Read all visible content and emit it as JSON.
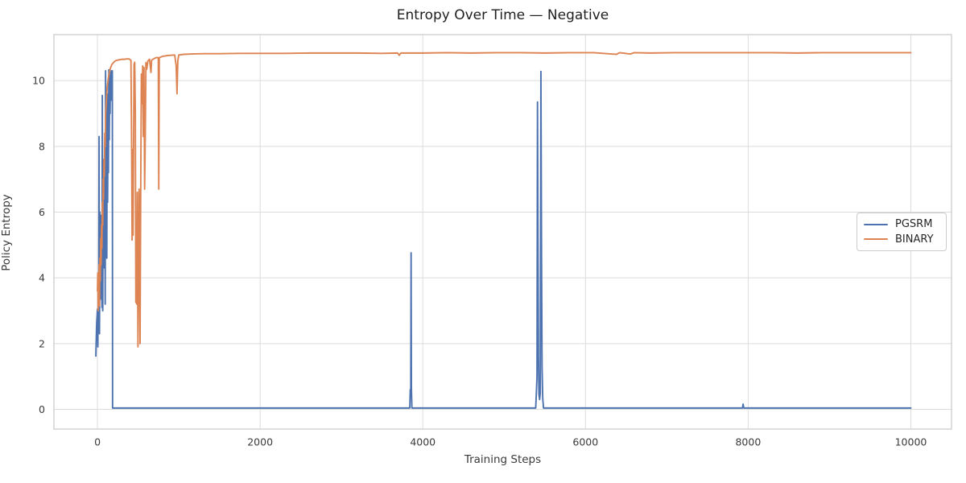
{
  "figure": {
    "title": "Entropy Over Time — Negative",
    "xlabel": "Training Steps",
    "ylabel": "Policy Entropy"
  },
  "legend": {
    "items": [
      {
        "label": "PGSRM",
        "color": "#4C72B0"
      },
      {
        "label": "BINARY",
        "color": "#DD8452"
      }
    ]
  },
  "colors": {
    "grid": "#DCDCDC",
    "spine": "#C9C9C9",
    "blue": "#4C72B0",
    "orange": "#DD8452"
  },
  "chart_data": {
    "type": "line",
    "title": "Entropy Over Time — Negative",
    "xlabel": "Training Steps",
    "ylabel": "Policy Entropy",
    "xlim": [
      -535,
      10500
    ],
    "ylim": [
      -0.6,
      11.4
    ],
    "xticks": [
      0,
      2000,
      4000,
      6000,
      8000,
      10000
    ],
    "yticks": [
      0,
      2,
      4,
      6,
      8,
      10
    ],
    "grid": true,
    "legend_position": "center right",
    "series": [
      {
        "name": "PGSRM",
        "color": "#4C72B0",
        "points": [
          [
            -20,
            1.62
          ],
          [
            -10,
            2.6
          ],
          [
            0,
            3.05
          ],
          [
            5,
            1.9
          ],
          [
            10,
            4.1
          ],
          [
            15,
            2.6
          ],
          [
            20,
            8.3
          ],
          [
            25,
            2.3
          ],
          [
            30,
            6.0
          ],
          [
            35,
            3.35
          ],
          [
            40,
            5.9
          ],
          [
            45,
            4.1
          ],
          [
            50,
            5.2
          ],
          [
            55,
            3.1
          ],
          [
            60,
            9.55
          ],
          [
            65,
            3.0
          ],
          [
            70,
            7.6
          ],
          [
            75,
            4.8
          ],
          [
            80,
            6.9
          ],
          [
            85,
            4.3
          ],
          [
            90,
            8.1
          ],
          [
            95,
            3.2
          ],
          [
            100,
            10.3
          ],
          [
            105,
            5.1
          ],
          [
            110,
            7.9
          ],
          [
            115,
            4.6
          ],
          [
            120,
            9.6
          ],
          [
            125,
            6.3
          ],
          [
            130,
            8.6
          ],
          [
            135,
            7.2
          ],
          [
            140,
            10.33
          ],
          [
            145,
            8.2
          ],
          [
            150,
            9.8
          ],
          [
            155,
            9.0
          ],
          [
            160,
            10.25
          ],
          [
            165,
            9.4
          ],
          [
            170,
            10.3
          ],
          [
            178,
            10.2
          ],
          [
            183,
            10.3
          ],
          [
            186,
            0.04
          ],
          [
            3840,
            0.04
          ],
          [
            3846,
            0.6
          ],
          [
            3852,
            0.55
          ],
          [
            3856,
            4.76
          ],
          [
            3860,
            0.62
          ],
          [
            3866,
            0.04
          ],
          [
            5388,
            0.04
          ],
          [
            5396,
            0.5
          ],
          [
            5404,
            1.0
          ],
          [
            5410,
            9.35
          ],
          [
            5416,
            5.2
          ],
          [
            5422,
            1.6
          ],
          [
            5428,
            0.45
          ],
          [
            5436,
            0.3
          ],
          [
            5444,
            0.5
          ],
          [
            5452,
            10.28
          ],
          [
            5460,
            4.4
          ],
          [
            5466,
            1.3
          ],
          [
            5474,
            0.35
          ],
          [
            5484,
            0.04
          ],
          [
            7930,
            0.04
          ],
          [
            7938,
            0.16
          ],
          [
            7946,
            0.04
          ],
          [
            10000,
            0.04
          ]
        ]
      },
      {
        "name": "BINARY",
        "color": "#DD8452",
        "points": [
          [
            0,
            3.6
          ],
          [
            4,
            4.15
          ],
          [
            8,
            3.0
          ],
          [
            12,
            3.95
          ],
          [
            16,
            3.3
          ],
          [
            20,
            4.4
          ],
          [
            25,
            3.15
          ],
          [
            30,
            4.6
          ],
          [
            35,
            3.9
          ],
          [
            40,
            5.2
          ],
          [
            45,
            4.4
          ],
          [
            50,
            5.6
          ],
          [
            55,
            4.9
          ],
          [
            60,
            6.3
          ],
          [
            65,
            5.6
          ],
          [
            70,
            7.0
          ],
          [
            75,
            6.4
          ],
          [
            80,
            7.6
          ],
          [
            85,
            7.1
          ],
          [
            90,
            8.4
          ],
          [
            95,
            8.0
          ],
          [
            100,
            9.0
          ],
          [
            110,
            9.4
          ],
          [
            120,
            9.8
          ],
          [
            135,
            10.1
          ],
          [
            150,
            10.3
          ],
          [
            165,
            10.42
          ],
          [
            180,
            10.5
          ],
          [
            200,
            10.56
          ],
          [
            220,
            10.6
          ],
          [
            240,
            10.62
          ],
          [
            260,
            10.63
          ],
          [
            280,
            10.64
          ],
          [
            300,
            10.65
          ],
          [
            330,
            10.65
          ],
          [
            360,
            10.66
          ],
          [
            390,
            10.66
          ],
          [
            412,
            10.62
          ],
          [
            420,
            8.0
          ],
          [
            426,
            5.15
          ],
          [
            432,
            7.9
          ],
          [
            438,
            5.3
          ],
          [
            444,
            8.0
          ],
          [
            450,
            10.5
          ],
          [
            458,
            10.56
          ],
          [
            466,
            9.0
          ],
          [
            472,
            3.25
          ],
          [
            478,
            4.9
          ],
          [
            484,
            3.2
          ],
          [
            490,
            6.6
          ],
          [
            498,
            1.9
          ],
          [
            506,
            4.4
          ],
          [
            512,
            6.7
          ],
          [
            518,
            4.5
          ],
          [
            524,
            2.0
          ],
          [
            532,
            6.7
          ],
          [
            540,
            10.2
          ],
          [
            548,
            9.3
          ],
          [
            556,
            10.45
          ],
          [
            564,
            8.3
          ],
          [
            572,
            10.4
          ],
          [
            580,
            6.7
          ],
          [
            588,
            8.3
          ],
          [
            596,
            10.55
          ],
          [
            606,
            10.35
          ],
          [
            620,
            10.6
          ],
          [
            640,
            10.65
          ],
          [
            658,
            10.25
          ],
          [
            666,
            10.62
          ],
          [
            690,
            10.66
          ],
          [
            720,
            10.7
          ],
          [
            748,
            10.7
          ],
          [
            754,
            6.7
          ],
          [
            760,
            10.7
          ],
          [
            800,
            10.74
          ],
          [
            850,
            10.76
          ],
          [
            900,
            10.77
          ],
          [
            950,
            10.78
          ],
          [
            968,
            10.45
          ],
          [
            978,
            9.6
          ],
          [
            988,
            10.6
          ],
          [
            1000,
            10.78
          ],
          [
            1060,
            10.8
          ],
          [
            1150,
            10.81
          ],
          [
            1300,
            10.82
          ],
          [
            1500,
            10.82
          ],
          [
            1750,
            10.83
          ],
          [
            2000,
            10.83
          ],
          [
            2300,
            10.83
          ],
          [
            2600,
            10.84
          ],
          [
            2900,
            10.84
          ],
          [
            3200,
            10.84
          ],
          [
            3500,
            10.83
          ],
          [
            3690,
            10.84
          ],
          [
            3710,
            10.77
          ],
          [
            3730,
            10.84
          ],
          [
            4000,
            10.84
          ],
          [
            4300,
            10.85
          ],
          [
            4600,
            10.84
          ],
          [
            4900,
            10.85
          ],
          [
            5200,
            10.85
          ],
          [
            5500,
            10.84
          ],
          [
            5800,
            10.85
          ],
          [
            6100,
            10.85
          ],
          [
            6380,
            10.8
          ],
          [
            6420,
            10.85
          ],
          [
            6550,
            10.81
          ],
          [
            6600,
            10.85
          ],
          [
            6800,
            10.84
          ],
          [
            7100,
            10.85
          ],
          [
            7400,
            10.85
          ],
          [
            7700,
            10.85
          ],
          [
            8000,
            10.85
          ],
          [
            8300,
            10.85
          ],
          [
            8600,
            10.84
          ],
          [
            8900,
            10.85
          ],
          [
            9200,
            10.85
          ],
          [
            9500,
            10.85
          ],
          [
            9750,
            10.85
          ],
          [
            10000,
            10.85
          ]
        ]
      }
    ]
  }
}
